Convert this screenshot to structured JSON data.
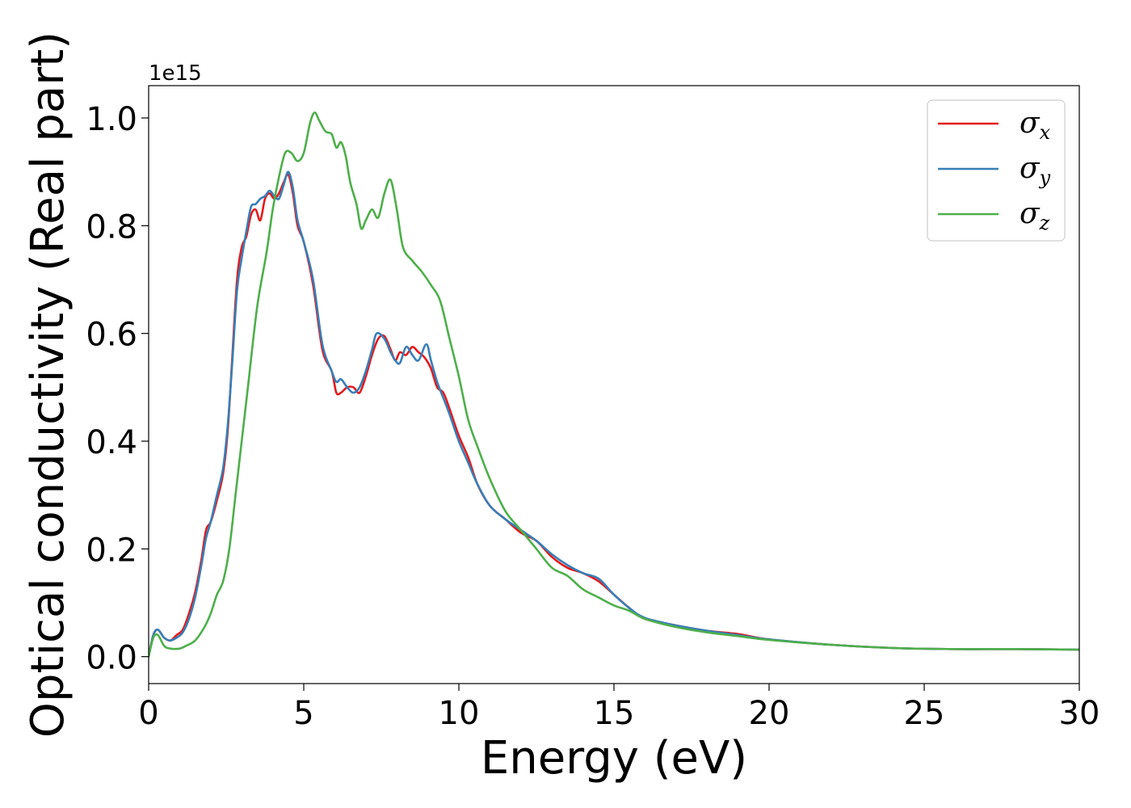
{
  "chart_data": {
    "type": "line",
    "xlabel": "Energy (eV)",
    "ylabel": "Optical conductivity (Real part)",
    "y_offset_label": "1e15",
    "xlim": [
      0,
      30
    ],
    "ylim": [
      -0.05,
      1.06
    ],
    "xticks": [
      0,
      5,
      10,
      15,
      20,
      25,
      30
    ],
    "xtick_labels": [
      "0",
      "5",
      "10",
      "15",
      "20",
      "25",
      "30"
    ],
    "yticks": [
      0.0,
      0.2,
      0.4,
      0.6,
      0.8,
      1.0
    ],
    "ytick_labels": [
      "0.0",
      "0.2",
      "0.4",
      "0.6",
      "0.8",
      "1.0"
    ],
    "grid": false,
    "legend_position": "top-right",
    "series": [
      {
        "name": "σx",
        "symbol": "σ",
        "subscript": "x",
        "color": "#e41a1c",
        "points": [
          [
            0,
            0
          ],
          [
            0.15,
            0.04
          ],
          [
            0.3,
            0.05
          ],
          [
            0.5,
            0.035
          ],
          [
            0.7,
            0.03
          ],
          [
            0.9,
            0.04
          ],
          [
            1.1,
            0.05
          ],
          [
            1.3,
            0.08
          ],
          [
            1.5,
            0.12
          ],
          [
            1.7,
            0.18
          ],
          [
            1.85,
            0.235
          ],
          [
            2.0,
            0.25
          ],
          [
            2.2,
            0.29
          ],
          [
            2.4,
            0.34
          ],
          [
            2.55,
            0.42
          ],
          [
            2.7,
            0.56
          ],
          [
            2.85,
            0.7
          ],
          [
            3.0,
            0.76
          ],
          [
            3.15,
            0.78
          ],
          [
            3.3,
            0.82
          ],
          [
            3.45,
            0.83
          ],
          [
            3.6,
            0.81
          ],
          [
            3.75,
            0.85
          ],
          [
            3.9,
            0.86
          ],
          [
            4.05,
            0.85
          ],
          [
            4.2,
            0.86
          ],
          [
            4.35,
            0.88
          ],
          [
            4.5,
            0.895
          ],
          [
            4.65,
            0.86
          ],
          [
            4.8,
            0.8
          ],
          [
            5.0,
            0.77
          ],
          [
            5.3,
            0.69
          ],
          [
            5.6,
            0.57
          ],
          [
            5.9,
            0.53
          ],
          [
            6.05,
            0.49
          ],
          [
            6.2,
            0.49
          ],
          [
            6.4,
            0.5
          ],
          [
            6.6,
            0.5
          ],
          [
            6.8,
            0.49
          ],
          [
            7.0,
            0.52
          ],
          [
            7.2,
            0.56
          ],
          [
            7.4,
            0.59
          ],
          [
            7.6,
            0.595
          ],
          [
            7.8,
            0.57
          ],
          [
            7.95,
            0.55
          ],
          [
            8.1,
            0.565
          ],
          [
            8.3,
            0.56
          ],
          [
            8.5,
            0.575
          ],
          [
            8.7,
            0.565
          ],
          [
            8.9,
            0.555
          ],
          [
            9.1,
            0.535
          ],
          [
            9.3,
            0.5
          ],
          [
            9.5,
            0.49
          ],
          [
            9.7,
            0.46
          ],
          [
            10.0,
            0.41
          ],
          [
            10.3,
            0.37
          ],
          [
            10.6,
            0.32
          ],
          [
            11.0,
            0.28
          ],
          [
            11.5,
            0.255
          ],
          [
            12.0,
            0.23
          ],
          [
            12.5,
            0.215
          ],
          [
            13.0,
            0.185
          ],
          [
            13.5,
            0.165
          ],
          [
            14.0,
            0.155
          ],
          [
            14.5,
            0.14
          ],
          [
            15.0,
            0.115
          ],
          [
            15.5,
            0.09
          ],
          [
            16.0,
            0.07
          ],
          [
            17.0,
            0.058
          ],
          [
            18.0,
            0.048
          ],
          [
            19.0,
            0.042
          ],
          [
            20.0,
            0.032
          ],
          [
            22.0,
            0.022
          ],
          [
            24.0,
            0.016
          ],
          [
            26.0,
            0.014
          ],
          [
            28.0,
            0.014
          ],
          [
            30.0,
            0.013
          ]
        ]
      },
      {
        "name": "σy",
        "symbol": "σ",
        "subscript": "y",
        "color": "#377eb8",
        "points": [
          [
            0,
            0
          ],
          [
            0.15,
            0.04
          ],
          [
            0.3,
            0.05
          ],
          [
            0.5,
            0.035
          ],
          [
            0.7,
            0.03
          ],
          [
            0.9,
            0.035
          ],
          [
            1.1,
            0.045
          ],
          [
            1.3,
            0.07
          ],
          [
            1.5,
            0.11
          ],
          [
            1.7,
            0.17
          ],
          [
            1.85,
            0.22
          ],
          [
            2.0,
            0.25
          ],
          [
            2.2,
            0.3
          ],
          [
            2.4,
            0.35
          ],
          [
            2.55,
            0.43
          ],
          [
            2.7,
            0.55
          ],
          [
            2.85,
            0.68
          ],
          [
            3.0,
            0.74
          ],
          [
            3.15,
            0.79
          ],
          [
            3.3,
            0.835
          ],
          [
            3.45,
            0.84
          ],
          [
            3.6,
            0.85
          ],
          [
            3.75,
            0.855
          ],
          [
            3.9,
            0.865
          ],
          [
            4.05,
            0.855
          ],
          [
            4.2,
            0.85
          ],
          [
            4.35,
            0.875
          ],
          [
            4.5,
            0.9
          ],
          [
            4.65,
            0.87
          ],
          [
            4.8,
            0.81
          ],
          [
            5.0,
            0.77
          ],
          [
            5.3,
            0.7
          ],
          [
            5.6,
            0.58
          ],
          [
            5.9,
            0.53
          ],
          [
            6.05,
            0.51
          ],
          [
            6.2,
            0.515
          ],
          [
            6.4,
            0.5
          ],
          [
            6.6,
            0.49
          ],
          [
            6.8,
            0.5
          ],
          [
            7.0,
            0.53
          ],
          [
            7.2,
            0.57
          ],
          [
            7.35,
            0.6
          ],
          [
            7.6,
            0.59
          ],
          [
            7.8,
            0.565
          ],
          [
            7.95,
            0.55
          ],
          [
            8.1,
            0.545
          ],
          [
            8.3,
            0.575
          ],
          [
            8.5,
            0.56
          ],
          [
            8.7,
            0.55
          ],
          [
            8.95,
            0.58
          ],
          [
            9.1,
            0.55
          ],
          [
            9.3,
            0.51
          ],
          [
            9.5,
            0.48
          ],
          [
            9.7,
            0.45
          ],
          [
            10.0,
            0.4
          ],
          [
            10.3,
            0.36
          ],
          [
            10.6,
            0.32
          ],
          [
            11.0,
            0.28
          ],
          [
            11.5,
            0.255
          ],
          [
            12.0,
            0.235
          ],
          [
            12.5,
            0.215
          ],
          [
            13.0,
            0.19
          ],
          [
            13.5,
            0.17
          ],
          [
            14.0,
            0.155
          ],
          [
            14.5,
            0.145
          ],
          [
            15.0,
            0.115
          ],
          [
            15.5,
            0.09
          ],
          [
            16.0,
            0.072
          ],
          [
            17.0,
            0.058
          ],
          [
            18.0,
            0.048
          ],
          [
            19.0,
            0.04
          ],
          [
            20.0,
            0.032
          ],
          [
            22.0,
            0.022
          ],
          [
            24.0,
            0.016
          ],
          [
            26.0,
            0.014
          ],
          [
            28.0,
            0.014
          ],
          [
            30.0,
            0.013
          ]
        ]
      },
      {
        "name": "σz",
        "symbol": "σ",
        "subscript": "z",
        "color": "#4daf4a",
        "points": [
          [
            0,
            0
          ],
          [
            0.15,
            0.035
          ],
          [
            0.3,
            0.04
          ],
          [
            0.5,
            0.02
          ],
          [
            0.7,
            0.015
          ],
          [
            1.0,
            0.015
          ],
          [
            1.2,
            0.02
          ],
          [
            1.5,
            0.03
          ],
          [
            1.8,
            0.055
          ],
          [
            2.0,
            0.08
          ],
          [
            2.2,
            0.115
          ],
          [
            2.4,
            0.14
          ],
          [
            2.6,
            0.2
          ],
          [
            2.8,
            0.3
          ],
          [
            3.0,
            0.4
          ],
          [
            3.2,
            0.5
          ],
          [
            3.5,
            0.65
          ],
          [
            3.8,
            0.75
          ],
          [
            4.0,
            0.83
          ],
          [
            4.2,
            0.89
          ],
          [
            4.4,
            0.935
          ],
          [
            4.6,
            0.935
          ],
          [
            4.8,
            0.92
          ],
          [
            5.0,
            0.935
          ],
          [
            5.2,
            0.99
          ],
          [
            5.35,
            1.01
          ],
          [
            5.5,
            0.995
          ],
          [
            5.7,
            0.975
          ],
          [
            5.9,
            0.97
          ],
          [
            6.05,
            0.945
          ],
          [
            6.2,
            0.955
          ],
          [
            6.35,
            0.93
          ],
          [
            6.5,
            0.88
          ],
          [
            6.7,
            0.84
          ],
          [
            6.85,
            0.795
          ],
          [
            7.0,
            0.81
          ],
          [
            7.2,
            0.83
          ],
          [
            7.4,
            0.815
          ],
          [
            7.6,
            0.86
          ],
          [
            7.8,
            0.885
          ],
          [
            8.0,
            0.83
          ],
          [
            8.2,
            0.76
          ],
          [
            8.5,
            0.735
          ],
          [
            8.8,
            0.715
          ],
          [
            9.1,
            0.69
          ],
          [
            9.4,
            0.66
          ],
          [
            9.7,
            0.59
          ],
          [
            10.0,
            0.52
          ],
          [
            10.3,
            0.44
          ],
          [
            10.6,
            0.39
          ],
          [
            11.0,
            0.33
          ],
          [
            11.5,
            0.27
          ],
          [
            12.0,
            0.235
          ],
          [
            12.5,
            0.2
          ],
          [
            13.0,
            0.165
          ],
          [
            13.5,
            0.15
          ],
          [
            14.0,
            0.125
          ],
          [
            14.5,
            0.11
          ],
          [
            15.0,
            0.095
          ],
          [
            15.5,
            0.085
          ],
          [
            16.0,
            0.07
          ],
          [
            17.0,
            0.055
          ],
          [
            18.0,
            0.045
          ],
          [
            19.0,
            0.038
          ],
          [
            20.0,
            0.031
          ],
          [
            22.0,
            0.022
          ],
          [
            24.0,
            0.016
          ],
          [
            26.0,
            0.014
          ],
          [
            28.0,
            0.014
          ],
          [
            30.0,
            0.013
          ]
        ]
      }
    ]
  }
}
